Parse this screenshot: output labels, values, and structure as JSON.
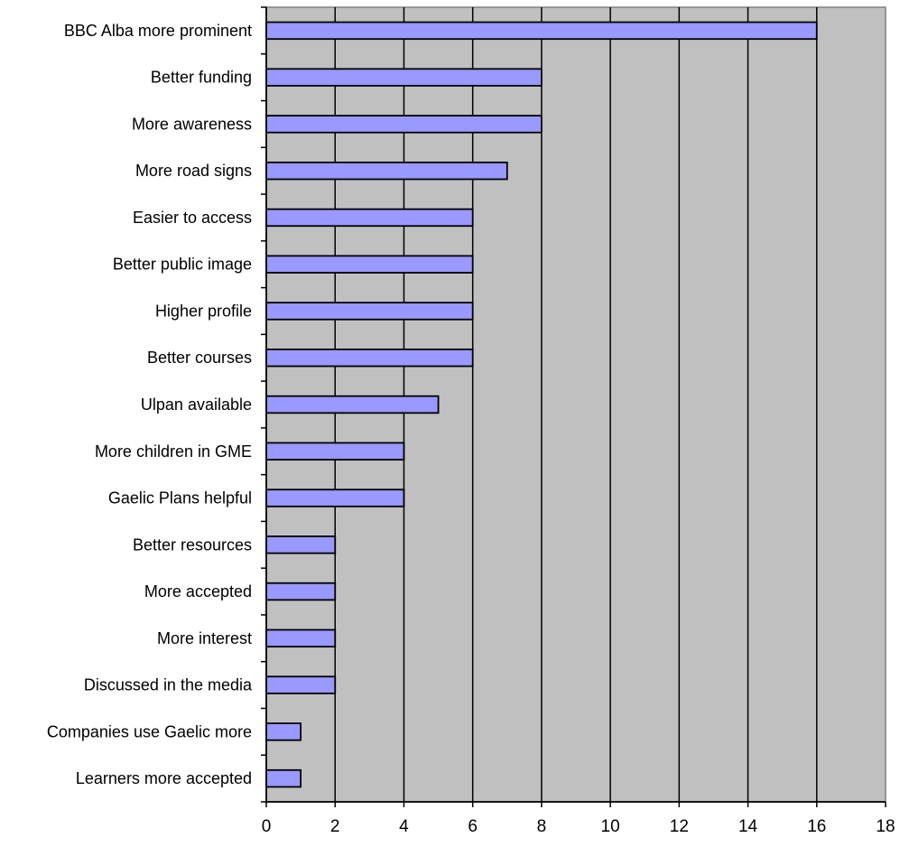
{
  "chart_data": {
    "type": "bar",
    "orientation": "horizontal",
    "categories": [
      "BBC Alba more prominent",
      "Better funding",
      "More awareness",
      "More road signs",
      "Easier to access",
      "Better public image",
      "Higher profile",
      "Better courses",
      "Ulpan available",
      "More children in GME",
      "Gaelic Plans helpful",
      "Better resources",
      "More accepted",
      "More interest",
      "Discussed in the media",
      "Companies use Gaelic more",
      "Learners more accepted"
    ],
    "values": [
      16,
      8,
      8,
      7,
      6,
      6,
      6,
      6,
      5,
      4,
      4,
      2,
      2,
      2,
      2,
      1,
      1
    ],
    "x_ticks": [
      "0",
      "2",
      "4",
      "6",
      "8",
      "10",
      "12",
      "14",
      "16",
      "18"
    ],
    "xlim": [
      0,
      18
    ],
    "title": "",
    "xlabel": "",
    "ylabel": "",
    "grid": "vertical",
    "legend": "none",
    "colors": {
      "plot_background": "#c0c0c0",
      "bar_fill": "#9999ff",
      "bar_stroke": "#000000",
      "gridline": "#000000"
    }
  }
}
